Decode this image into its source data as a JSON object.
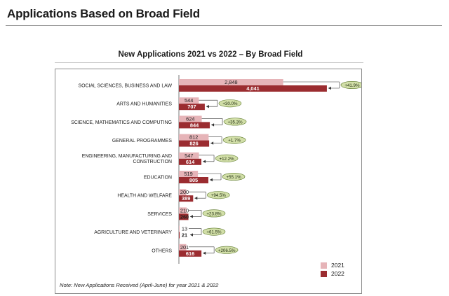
{
  "page": {
    "title": "Applications Based on Broad Field"
  },
  "footnote": "Note: New Applications Received (April-June) for year 2021 & 2022",
  "colors": {
    "s2021": "#e6b4b8",
    "s2022": "#9b2c30",
    "badge_fill": "#d2dfa8",
    "badge_stroke": "#5e7a2e"
  },
  "chart_data": {
    "type": "bar",
    "orientation": "horizontal",
    "title": "New Applications 2021 vs 2022 – By Broad Field",
    "categories": [
      "SOCIAL SCIENCES, BUSINESS AND LAW",
      "ARTS AND HUMANITIES",
      "SCIENCE, MATHEMATICS AND COMPUTING",
      "GENERAL PROGRAMMES",
      "ENGINEERING, MANUFACTURING AND CONSTRUCTION",
      "EDUCATION",
      "HEALTH AND WELFARE",
      "SERVICES",
      "AGRICULTURE AND VETERINARY",
      "OTHERS"
    ],
    "series": [
      {
        "name": "2021",
        "values": [
          2848,
          544,
          624,
          812,
          547,
          519,
          200,
          210,
          13,
          201
        ],
        "labels": [
          "2,848",
          "544",
          "624",
          "812",
          "547",
          "519",
          "200",
          "210",
          "13",
          "201"
        ]
      },
      {
        "name": "2022",
        "values": [
          4041,
          707,
          844,
          826,
          614,
          805,
          389,
          260,
          21,
          616
        ],
        "labels": [
          "4,041",
          "707",
          "844",
          "826",
          "614",
          "805",
          "389",
          "260",
          "21",
          "616"
        ]
      }
    ],
    "growth": [
      "+41.9%",
      "+30.0%",
      "+35.3%",
      "+1.7%",
      "+12.2%",
      "+55.1%",
      "+94.5%",
      "+23.8%",
      "+61.5%",
      "+206.5%"
    ],
    "legend": [
      "2021",
      "2022"
    ],
    "legend_position": "bottom-right",
    "xlim": [
      0,
      4100
    ],
    "grid": false
  }
}
